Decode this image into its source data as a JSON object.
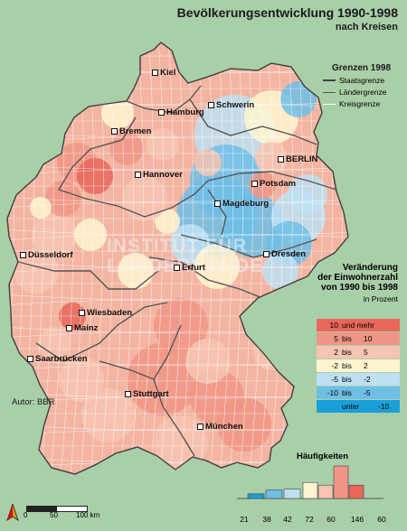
{
  "title": "Bevölkerungsentwicklung 1990-1998",
  "subtitle": "nach Kreisen",
  "boundary_legend": {
    "title": "Grenzen 1998",
    "items": [
      "Staatsgrenze",
      "Ländergrenze",
      "Kreisgrenze"
    ]
  },
  "change_legend": {
    "title_lines": [
      "Veränderung",
      "der Einwohnerzahl",
      "von 1990 bis 1998"
    ],
    "unit": "in Prozent",
    "classes": [
      {
        "a": "10",
        "b": "und mehr",
        "c": "",
        "color": "#e8665c"
      },
      {
        "a": "5",
        "b": "bis",
        "c": "10",
        "color": "#f09585"
      },
      {
        "a": "2",
        "b": "bis",
        "c": "5",
        "color": "#f6c4b2"
      },
      {
        "a": "-2",
        "b": "bis",
        "c": "2",
        "color": "#fff4cf"
      },
      {
        "a": "-5",
        "b": "bis",
        "c": "-2",
        "color": "#bde0f2"
      },
      {
        "a": "-10",
        "b": "bis",
        "c": "-5",
        "color": "#6fbee6"
      },
      {
        "a": "",
        "b": "unter",
        "c": "-10",
        "color": "#1aa0d8"
      }
    ]
  },
  "histogram": {
    "title": "Häufigkeiten",
    "counts": [
      21,
      38,
      42,
      72,
      60,
      146,
      60
    ],
    "colors": [
      "#1aa0d8",
      "#6fbee6",
      "#bde0f2",
      "#fff4cf",
      "#f6c4b2",
      "#f09585",
      "#e8665c"
    ]
  },
  "cities": [
    {
      "name": "Kiel"
    },
    {
      "name": "Hamburg"
    },
    {
      "name": "Schwerin"
    },
    {
      "name": "Bremen"
    },
    {
      "name": "Hannover"
    },
    {
      "name": "BERLIN"
    },
    {
      "name": "Potsdam"
    },
    {
      "name": "Magdeburg"
    },
    {
      "name": "Düsseldorf"
    },
    {
      "name": "Dresden"
    },
    {
      "name": "Erfurt"
    },
    {
      "name": "Wiesbaden"
    },
    {
      "name": "Mainz"
    },
    {
      "name": "Saarbrücken"
    },
    {
      "name": "Stuttgart"
    },
    {
      "name": "München"
    }
  ],
  "author": "Autor:  BBR",
  "scale": {
    "labels": [
      "0",
      "50",
      "100 km"
    ]
  },
  "watermark": "INSTITUT FÜR LÄNDERKUNDE",
  "colors": {
    "background": "#a9cfa9",
    "land": "#f3b5a2",
    "state_border": "#555555"
  }
}
